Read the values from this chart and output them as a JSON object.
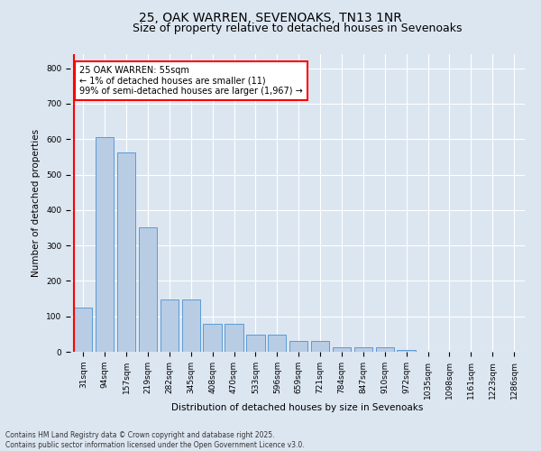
{
  "title_line1": "25, OAK WARREN, SEVENOAKS, TN13 1NR",
  "title_line2": "Size of property relative to detached houses in Sevenoaks",
  "xlabel": "Distribution of detached houses by size in Sevenoaks",
  "ylabel": "Number of detached properties",
  "categories": [
    "31sqm",
    "94sqm",
    "157sqm",
    "219sqm",
    "282sqm",
    "345sqm",
    "408sqm",
    "470sqm",
    "533sqm",
    "596sqm",
    "659sqm",
    "721sqm",
    "784sqm",
    "847sqm",
    "910sqm",
    "972sqm",
    "1035sqm",
    "1098sqm",
    "1161sqm",
    "1223sqm",
    "1286sqm"
  ],
  "values": [
    125,
    607,
    563,
    350,
    148,
    148,
    78,
    78,
    48,
    48,
    30,
    30,
    13,
    13,
    13,
    5,
    0,
    0,
    0,
    0,
    0
  ],
  "bar_color": "#b8cce4",
  "bar_edge_color": "#5b9bd5",
  "background_color": "#dce6f1",
  "plot_bg_color": "#dce6f1",
  "annotation_text": "25 OAK WARREN: 55sqm\n← 1% of detached houses are smaller (11)\n99% of semi-detached houses are larger (1,967) →",
  "annotation_box_color": "white",
  "annotation_box_edge_color": "red",
  "vline_color": "red",
  "ylim": [
    0,
    840
  ],
  "yticks": [
    0,
    100,
    200,
    300,
    400,
    500,
    600,
    700,
    800
  ],
  "footnote": "Contains HM Land Registry data © Crown copyright and database right 2025.\nContains public sector information licensed under the Open Government Licence v3.0.",
  "title_fontsize": 10,
  "subtitle_fontsize": 9,
  "axis_label_fontsize": 7.5,
  "tick_fontsize": 6.5,
  "annotation_fontsize": 7,
  "footnote_fontsize": 5.5
}
